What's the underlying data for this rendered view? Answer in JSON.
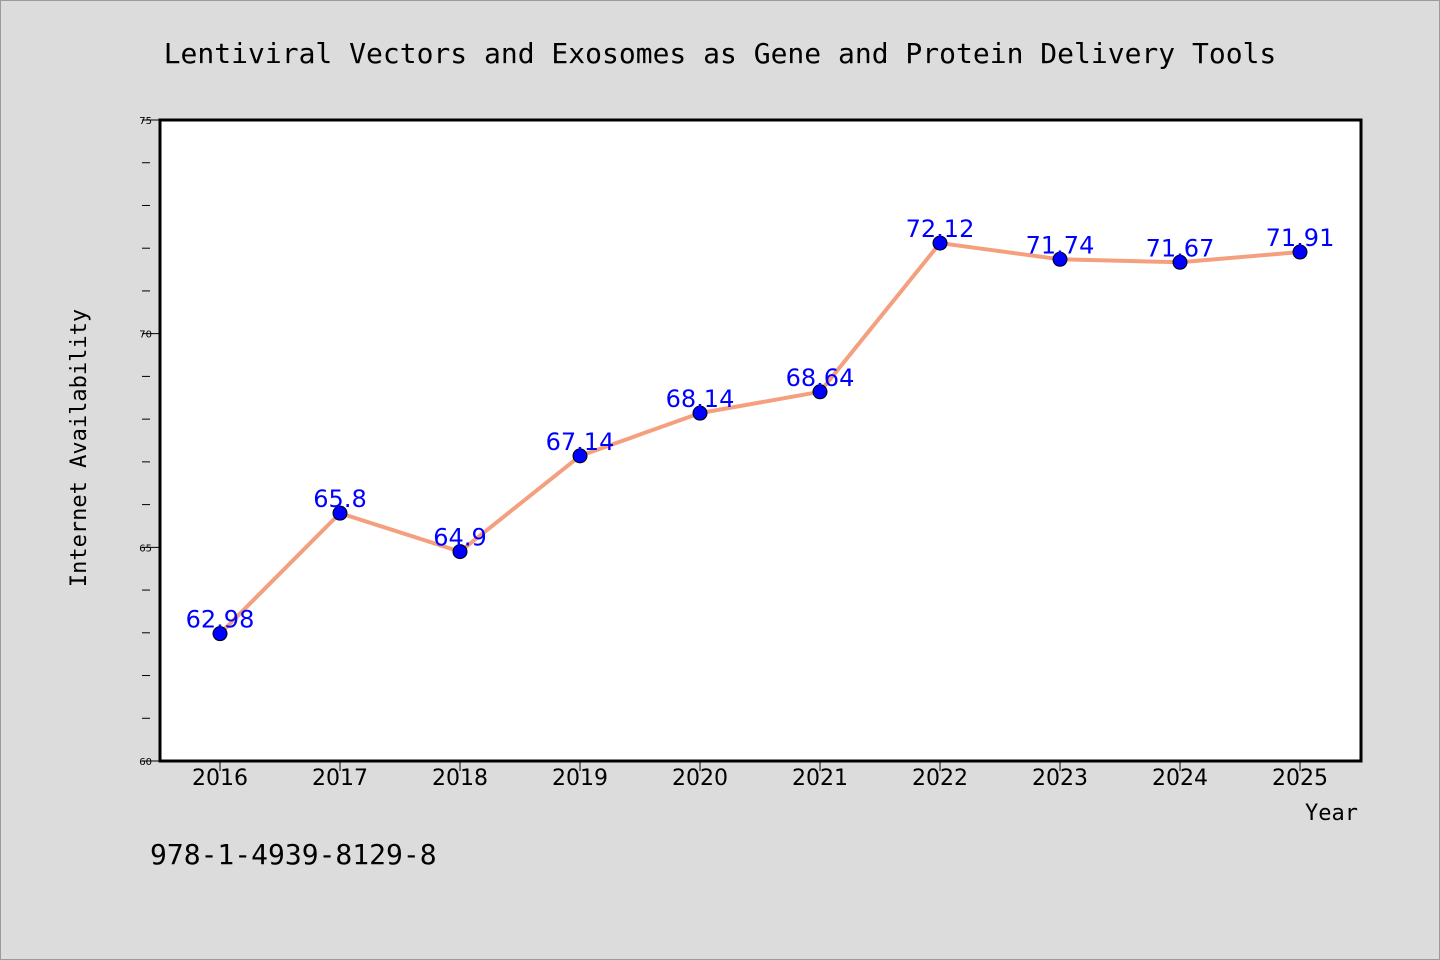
{
  "chart_data": {
    "type": "line",
    "title": "Lentiviral Vectors and Exosomes as Gene and Protein Delivery Tools",
    "xlabel": "Year",
    "ylabel": "Internet Availability",
    "categories": [
      "2016",
      "2017",
      "2018",
      "2019",
      "2020",
      "2021",
      "2022",
      "2023",
      "2024",
      "2025"
    ],
    "series": [
      {
        "values": [
          62.98,
          65.8,
          64.9,
          67.14,
          68.14,
          68.64,
          72.12,
          71.74,
          71.67,
          71.91
        ],
        "labels": [
          "62.98",
          "65.8",
          "64.9",
          "67.14",
          "68.14",
          "68.64",
          "72.12",
          "71.74",
          "71.67",
          "71.91"
        ]
      }
    ],
    "ylim": [
      60,
      75
    ],
    "yticks": [
      "60",
      "65",
      "70",
      "75"
    ],
    "line_color": "#f4a07e",
    "marker_color": "#0000ff",
    "label_color": "#0000ff",
    "grid": false
  },
  "footnote": "978-1-4939-8129-8"
}
